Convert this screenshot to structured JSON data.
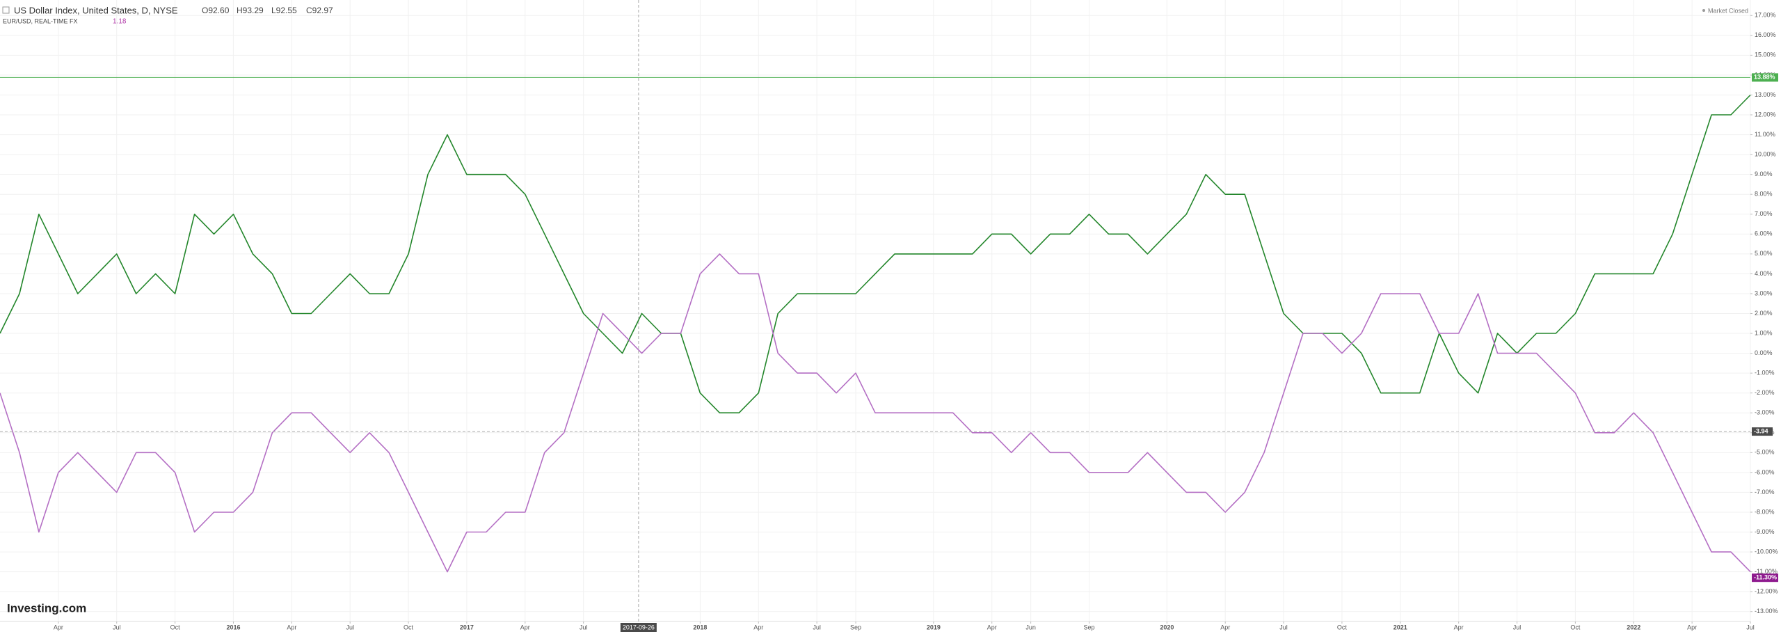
{
  "chart_data": {
    "type": "line",
    "title": "US Dollar Index, United States, D, NYSE",
    "ohlc": [
      "O92.60",
      "H93.29",
      "L92.55",
      "C92.97"
    ],
    "compare_title": "EUR/USD, REAL-TIME FX",
    "compare_value": "1.18",
    "status": "Market Closed",
    "logo": "Investing.com",
    "grid": true,
    "xlim": [
      "2015-01",
      "2022-07"
    ],
    "ylim": [
      -13.5,
      17.5
    ],
    "xticks": [
      {
        "value": "2015-04",
        "label": "Apr"
      },
      {
        "value": "2015-07",
        "label": "Jul"
      },
      {
        "value": "2015-10",
        "label": "Oct"
      },
      {
        "value": "2016-01",
        "label": "2016"
      },
      {
        "value": "2016-04",
        "label": "Apr"
      },
      {
        "value": "2016-07",
        "label": "Jul"
      },
      {
        "value": "2016-10",
        "label": "Oct"
      },
      {
        "value": "2017-01",
        "label": "2017"
      },
      {
        "value": "2017-04",
        "label": "Apr"
      },
      {
        "value": "2017-07",
        "label": "Jul"
      },
      {
        "value": "2018-01",
        "label": "2018"
      },
      {
        "value": "2018-04",
        "label": "Apr"
      },
      {
        "value": "2018-07",
        "label": "Jul"
      },
      {
        "value": "2018-09",
        "label": "Sep"
      },
      {
        "value": "2019-01",
        "label": "2019"
      },
      {
        "value": "2019-04",
        "label": "Apr"
      },
      {
        "value": "2019-06",
        "label": "Jun"
      },
      {
        "value": "2019-09",
        "label": "Sep"
      },
      {
        "value": "2020-01",
        "label": "2020"
      },
      {
        "value": "2020-04",
        "label": "Apr"
      },
      {
        "value": "2020-07",
        "label": "Jul"
      },
      {
        "value": "2020-10",
        "label": "Oct"
      },
      {
        "value": "2021-01",
        "label": "2021"
      },
      {
        "value": "2021-04",
        "label": "Apr"
      },
      {
        "value": "2021-07",
        "label": "Jul"
      },
      {
        "value": "2021-10",
        "label": "Oct"
      },
      {
        "value": "2022-01",
        "label": "2022"
      },
      {
        "value": "2022-04",
        "label": "Apr"
      },
      {
        "value": "2022-07",
        "label": "Jul"
      }
    ],
    "yticks": [
      {
        "value": 17,
        "label": "17.00%"
      },
      {
        "value": 16,
        "label": "16.00%"
      },
      {
        "value": 15,
        "label": "15.00%"
      },
      {
        "value": 14,
        "label": "14.00%"
      },
      {
        "value": 13,
        "label": "13.00%"
      },
      {
        "value": 12,
        "label": "12.00%"
      },
      {
        "value": 11,
        "label": "11.00%"
      },
      {
        "value": 10,
        "label": "10.00%"
      },
      {
        "value": 9,
        "label": "9.00%"
      },
      {
        "value": 8,
        "label": "8.00%"
      },
      {
        "value": 7,
        "label": "7.00%"
      },
      {
        "value": 6,
        "label": "6.00%"
      },
      {
        "value": 5,
        "label": "5.00%"
      },
      {
        "value": 4,
        "label": "4.00%"
      },
      {
        "value": 3,
        "label": "3.00%"
      },
      {
        "value": 2,
        "label": "2.00%"
      },
      {
        "value": 1,
        "label": "1.00%"
      },
      {
        "value": 0,
        "label": "0.00%"
      },
      {
        "value": -1,
        "label": "-1.00%"
      },
      {
        "value": -2,
        "label": "-2.00%"
      },
      {
        "value": -3,
        "label": "-3.00%"
      },
      {
        "value": -4,
        "label": "-4.00%"
      },
      {
        "value": -5,
        "label": "-5.00%"
      },
      {
        "value": -6,
        "label": "-6.00%"
      },
      {
        "value": -7,
        "label": "-7.00%"
      },
      {
        "value": -8,
        "label": "-8.00%"
      },
      {
        "value": -9,
        "label": "-9.00%"
      },
      {
        "value": -10,
        "label": "-10.00%"
      },
      {
        "value": -11,
        "label": "-11.00%"
      },
      {
        "value": -12,
        "label": "-12.00%"
      },
      {
        "value": -13,
        "label": "-13.00%"
      }
    ],
    "x": [
      "2015-01",
      "2015-02",
      "2015-03",
      "2015-04",
      "2015-05",
      "2015-06",
      "2015-07",
      "2015-08",
      "2015-09",
      "2015-10",
      "2015-11",
      "2015-12",
      "2016-01",
      "2016-02",
      "2016-03",
      "2016-04",
      "2016-05",
      "2016-06",
      "2016-07",
      "2016-08",
      "2016-09",
      "2016-10",
      "2016-11",
      "2016-12",
      "2017-01",
      "2017-02",
      "2017-03",
      "2017-04",
      "2017-05",
      "2017-06",
      "2017-07",
      "2017-08",
      "2017-09",
      "2017-10",
      "2017-11",
      "2017-12",
      "2018-01",
      "2018-02",
      "2018-03",
      "2018-04",
      "2018-05",
      "2018-06",
      "2018-07",
      "2018-08",
      "2018-09",
      "2018-10",
      "2018-11",
      "2018-12",
      "2019-01",
      "2019-02",
      "2019-03",
      "2019-04",
      "2019-05",
      "2019-06",
      "2019-07",
      "2019-08",
      "2019-09",
      "2019-10",
      "2019-11",
      "2019-12",
      "2020-01",
      "2020-02",
      "2020-03",
      "2020-04",
      "2020-05",
      "2020-06",
      "2020-07",
      "2020-08",
      "2020-09",
      "2020-10",
      "2020-11",
      "2020-12",
      "2021-01",
      "2021-02",
      "2021-03",
      "2021-04",
      "2021-05",
      "2021-06",
      "2021-07",
      "2021-08",
      "2021-09",
      "2021-10",
      "2021-11",
      "2021-12",
      "2022-01",
      "2022-02",
      "2022-03",
      "2022-04",
      "2022-05",
      "2022-06",
      "2022-07"
    ],
    "series": [
      {
        "name": "US Dollar Index",
        "color": "#23862b",
        "values": [
          1,
          3,
          7,
          5,
          3,
          4,
          5,
          3,
          4,
          3,
          7,
          6,
          7,
          5,
          4,
          2,
          2,
          3,
          4,
          3,
          3,
          5,
          9,
          11,
          9,
          9,
          9,
          8,
          6,
          4,
          2,
          1,
          0,
          2,
          1,
          1,
          -2,
          -3,
          -3,
          -2,
          2,
          3,
          3,
          3,
          3,
          4,
          5,
          5,
          5,
          5,
          5,
          6,
          6,
          5,
          6,
          6,
          7,
          6,
          6,
          5,
          6,
          7,
          9,
          8,
          8,
          5,
          2,
          1,
          1,
          1,
          0,
          -2,
          -2,
          -2,
          1,
          -1,
          -2,
          1,
          0,
          1,
          1,
          2,
          4,
          4,
          4,
          4,
          6,
          9,
          12,
          12,
          13
        ]
      },
      {
        "name": "EUR/USD",
        "color": "#b46fc4",
        "values": [
          -2,
          -5,
          -9,
          -6,
          -5,
          -6,
          -7,
          -5,
          -5,
          -6,
          -9,
          -8,
          -8,
          -7,
          -4,
          -3,
          -3,
          -4,
          -5,
          -4,
          -5,
          -7,
          -9,
          -11,
          -9,
          -9,
          -8,
          -8,
          -5,
          -4,
          -1,
          2,
          1,
          0,
          1,
          1,
          4,
          5,
          4,
          4,
          0,
          -1,
          -1,
          -2,
          -1,
          -3,
          -3,
          -3,
          -3,
          -3,
          -4,
          -4,
          -5,
          -4,
          -5,
          -5,
          -6,
          -6,
          -6,
          -5,
          -6,
          -7,
          -7,
          -8,
          -7,
          -5,
          -2,
          1,
          1,
          0,
          1,
          3,
          3,
          3,
          1,
          1,
          3,
          0,
          0,
          0,
          -1,
          -2,
          -4,
          -4,
          -3,
          -4,
          -6,
          -8,
          -10,
          -10,
          -11
        ]
      }
    ],
    "price_lines": [
      {
        "value": 13.88,
        "label": "13.88%",
        "color": "#4caf50"
      },
      {
        "value": -11.3,
        "label": "-11.30%",
        "color": "#8e1a8e"
      }
    ],
    "crosshair": {
      "x": "2017-09-26",
      "y": -3.94
    }
  }
}
